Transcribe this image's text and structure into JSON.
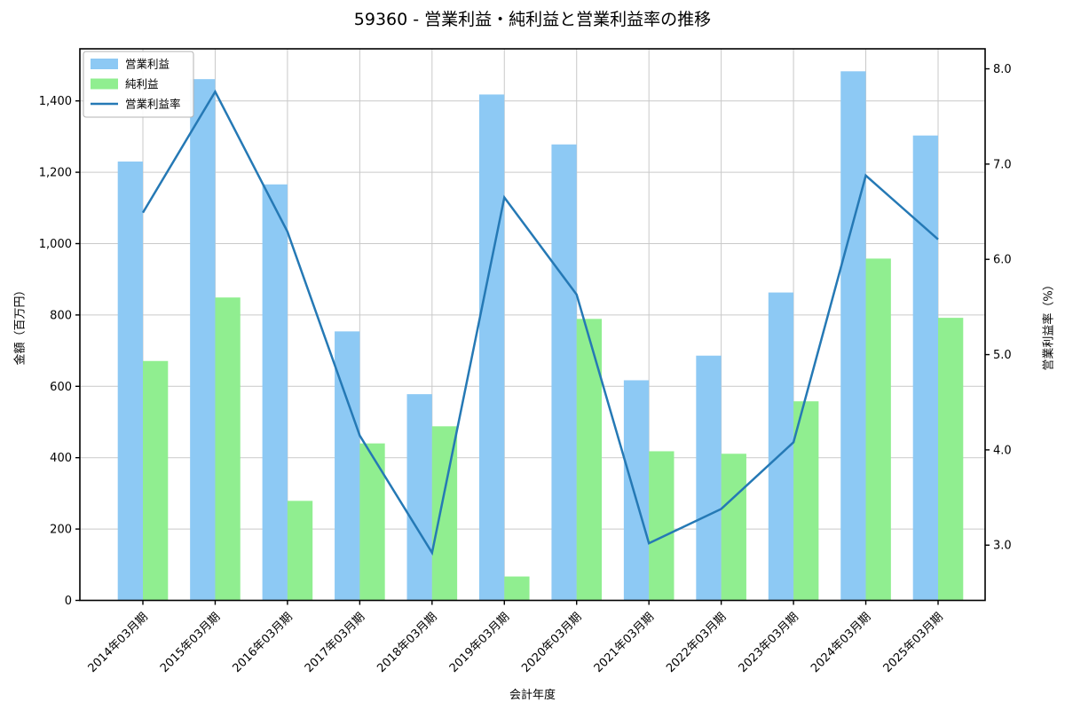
{
  "title": "59360 - 営業利益・純利益と営業利益率の推移",
  "colors": {
    "operating_profit_bar": "#8DC9F4",
    "net_profit_bar": "#90EE90",
    "ratio_line": "#2579B5",
    "grid": "#C9C9C9",
    "spine": "#000000",
    "legend_border": "#B3B3B3",
    "legend_background": "#FFFFFF"
  },
  "chart_data": {
    "type": "bar",
    "title": "59360 - 営業利益・純利益と営業利益率の推移",
    "xlabel": "会計年度",
    "ylabel_left": "金額（百万円）",
    "ylabel_right": "営業利益率（%）",
    "grid": true,
    "legend_position": "upper left",
    "categories": [
      "2014年03月期",
      "2015年03月期",
      "2016年03月期",
      "2017年03月期",
      "2018年03月期",
      "2019年03月期",
      "2020年03月期",
      "2021年03月期",
      "2022年03月期",
      "2023年03月期",
      "2024年03月期",
      "2025年03月期"
    ],
    "series": [
      {
        "name": "営業利益",
        "type": "bar",
        "axis": "left",
        "values": [
          1230,
          1461,
          1166,
          754,
          578,
          1418,
          1278,
          617,
          686,
          863,
          1483,
          1303
        ]
      },
      {
        "name": "純利益",
        "type": "bar",
        "axis": "left",
        "values": [
          671,
          849,
          279,
          440,
          488,
          67,
          789,
          418,
          411,
          558,
          958,
          792
        ]
      },
      {
        "name": "営業利益率",
        "type": "line",
        "axis": "right",
        "values": [
          6.49,
          7.76,
          6.29,
          4.15,
          2.92,
          6.65,
          5.63,
          3.02,
          3.38,
          4.08,
          6.88,
          6.21
        ]
      }
    ],
    "left_ticks": [
      0,
      200,
      400,
      600,
      800,
      1000,
      1200,
      1400
    ],
    "right_ticks": [
      3.0,
      4.0,
      5.0,
      6.0,
      7.0,
      8.0
    ],
    "left_range": [
      0,
      1546
    ],
    "right_range": [
      2.42,
      8.21
    ]
  }
}
